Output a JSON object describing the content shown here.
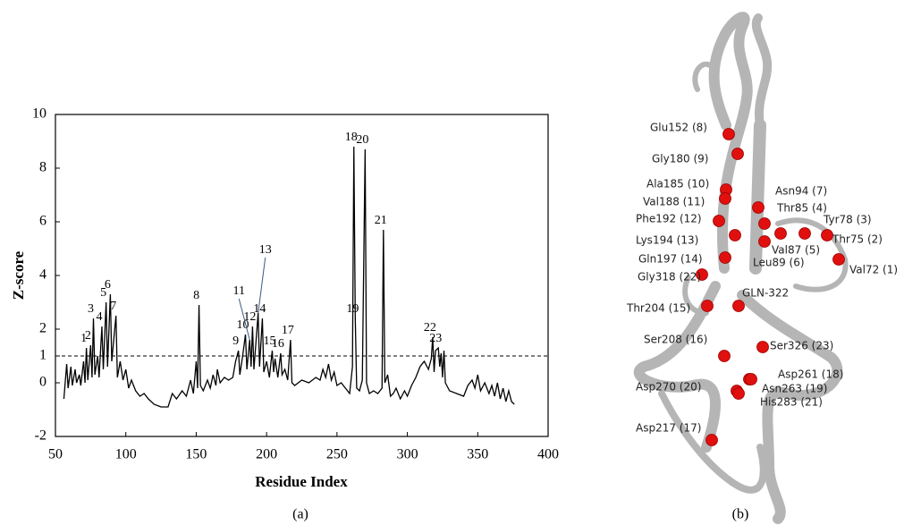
{
  "chart_data": {
    "type": "line",
    "caption": "(a)",
    "x_label": "Residue Index",
    "y_label": "Z-score",
    "color": "#000000",
    "xlim": [
      50,
      400
    ],
    "xticks": [
      50,
      100,
      150,
      200,
      250,
      300,
      350,
      400
    ],
    "ylim": [
      -2,
      10
    ],
    "yticks": [
      -2,
      0,
      1,
      2,
      4,
      6,
      8,
      10
    ],
    "threshold": 1,
    "x": [
      56,
      58,
      59,
      61,
      62,
      64,
      65,
      67,
      68,
      70,
      71,
      72,
      73,
      75,
      76,
      77,
      78,
      80,
      81,
      83,
      84,
      86,
      87,
      89,
      90,
      93,
      94,
      96,
      98,
      100,
      102,
      104,
      107,
      110,
      113,
      116,
      120,
      125,
      130,
      133,
      136,
      140,
      143,
      146,
      148,
      150,
      151,
      152,
      153,
      155,
      158,
      160,
      162,
      164,
      165,
      167,
      170,
      173,
      176,
      178,
      180,
      181,
      183,
      185,
      186,
      188,
      189,
      190,
      191,
      192,
      194,
      195,
      197,
      198,
      200,
      202,
      204,
      205,
      206,
      208,
      210,
      211,
      213,
      215,
      217,
      218,
      220,
      225,
      230,
      235,
      238,
      240,
      242,
      244,
      246,
      248,
      250,
      253,
      256,
      259,
      261,
      262,
      263,
      264,
      266,
      268,
      270,
      271,
      273,
      276,
      279,
      282,
      283,
      284,
      286,
      288,
      290,
      292,
      295,
      298,
      300,
      303,
      306,
      309,
      312,
      315,
      317,
      318,
      319,
      320,
      322,
      323,
      324,
      325,
      326,
      327,
      330,
      335,
      340,
      343,
      346,
      348,
      350,
      352,
      355,
      358,
      360,
      362,
      364,
      366,
      368,
      370,
      372,
      374,
      376
    ],
    "values": [
      -0.6,
      0.7,
      -0.2,
      0.6,
      -0.1,
      0.5,
      0.0,
      0.3,
      -0.1,
      0.8,
      0.0,
      1.3,
      0.1,
      1.4,
      0.2,
      2.4,
      0.3,
      1.0,
      0.2,
      2.1,
      0.5,
      3.0,
      0.6,
      3.3,
      0.8,
      2.5,
      0.2,
      0.8,
      0.1,
      0.5,
      -0.2,
      0.1,
      -0.3,
      -0.5,
      -0.4,
      -0.6,
      -0.8,
      -0.9,
      -0.9,
      -0.4,
      -0.6,
      -0.3,
      -0.5,
      0.1,
      -0.4,
      0.8,
      -0.2,
      2.9,
      -0.1,
      -0.3,
      0.1,
      -0.2,
      0.3,
      -0.1,
      0.5,
      0.0,
      0.2,
      0.1,
      0.2,
      0.8,
      1.2,
      0.3,
      1.0,
      1.8,
      0.5,
      1.6,
      0.6,
      2.1,
      0.5,
      1.2,
      2.6,
      0.6,
      2.4,
      0.4,
      0.8,
      0.2,
      1.2,
      0.4,
      0.9,
      0.2,
      1.1,
      0.3,
      0.5,
      0.1,
      1.6,
      0.0,
      -0.1,
      0.1,
      0.0,
      0.2,
      0.1,
      0.5,
      0.2,
      0.7,
      0.1,
      0.4,
      -0.1,
      0.0,
      -0.2,
      -0.4,
      0.6,
      8.8,
      2.4,
      -0.2,
      -0.3,
      0.1,
      8.7,
      0.0,
      -0.4,
      -0.3,
      -0.4,
      -0.2,
      5.7,
      0.0,
      0.3,
      -0.5,
      -0.4,
      -0.2,
      -0.6,
      -0.3,
      -0.5,
      -0.1,
      0.2,
      0.6,
      0.8,
      0.5,
      0.9,
      1.7,
      0.4,
      1.2,
      1.3,
      0.6,
      1.1,
      0.2,
      1.2,
      0.0,
      -0.3,
      -0.4,
      -0.5,
      -0.1,
      0.1,
      -0.2,
      0.3,
      -0.3,
      0.0,
      -0.4,
      -0.1,
      -0.5,
      0.0,
      -0.6,
      -0.2,
      -0.7,
      -0.3,
      -0.7,
      -0.8
    ],
    "peak_labels": [
      {
        "text": 1,
        "x": 72,
        "y": 1.3
      },
      {
        "text": 2,
        "x": 75,
        "y": 1.4
      },
      {
        "text": 3,
        "x": 77,
        "y": 2.4
      },
      {
        "text": 4,
        "x": 83,
        "y": 2.1
      },
      {
        "text": 5,
        "x": 86,
        "y": 3.0
      },
      {
        "text": 6,
        "x": 89,
        "y": 3.3
      },
      {
        "text": 7,
        "x": 93,
        "y": 2.5
      },
      {
        "text": 8,
        "x": 152,
        "y": 2.9
      },
      {
        "text": 9,
        "x": 180,
        "y": 1.2
      },
      {
        "text": 10,
        "x": 185,
        "y": 1.8
      },
      {
        "text": 11,
        "x": 188,
        "y": 1.6
      },
      {
        "text": 12,
        "x": 190,
        "y": 2.1
      },
      {
        "text": 13,
        "x": 194,
        "y": 2.6
      },
      {
        "text": 14,
        "x": 197,
        "y": 2.4
      },
      {
        "text": 15,
        "x": 204,
        "y": 1.2
      },
      {
        "text": 16,
        "x": 210,
        "y": 1.1
      },
      {
        "text": 17,
        "x": 217,
        "y": 1.6
      },
      {
        "text": 18,
        "x": 262,
        "y": 8.8
      },
      {
        "text": 19,
        "x": 263,
        "y": 2.4
      },
      {
        "text": 20,
        "x": 270,
        "y": 8.7
      },
      {
        "text": 21,
        "x": 283,
        "y": 5.7
      },
      {
        "text": 22,
        "x": 318,
        "y": 1.7
      },
      {
        "text": 23,
        "x": 322,
        "y": 1.3
      }
    ]
  },
  "structure": {
    "caption": "(b)",
    "labels": [
      "Glu152 (8)",
      "Gly180 (9)",
      "Ala185 (10)",
      "Val188 (11)",
      "Phe192 (12)",
      "Lys194 (13)",
      "Gln197 (14)",
      "Gly318 (22)",
      "Thr204 (15)",
      "GLN-322",
      "Ser208 (16)",
      "Ser326 (23)",
      "Asp261 (18)",
      "Asp270 (20)",
      "Asn263 (19)",
      "His283 (21)",
      "Asp217 (17)",
      "Asn94 (7)",
      "Thr85 (4)",
      "Tyr78 (3)",
      "Val87 (5)",
      "Thr75 (2)",
      "Leu89 (6)",
      "Val72 (1)"
    ]
  }
}
